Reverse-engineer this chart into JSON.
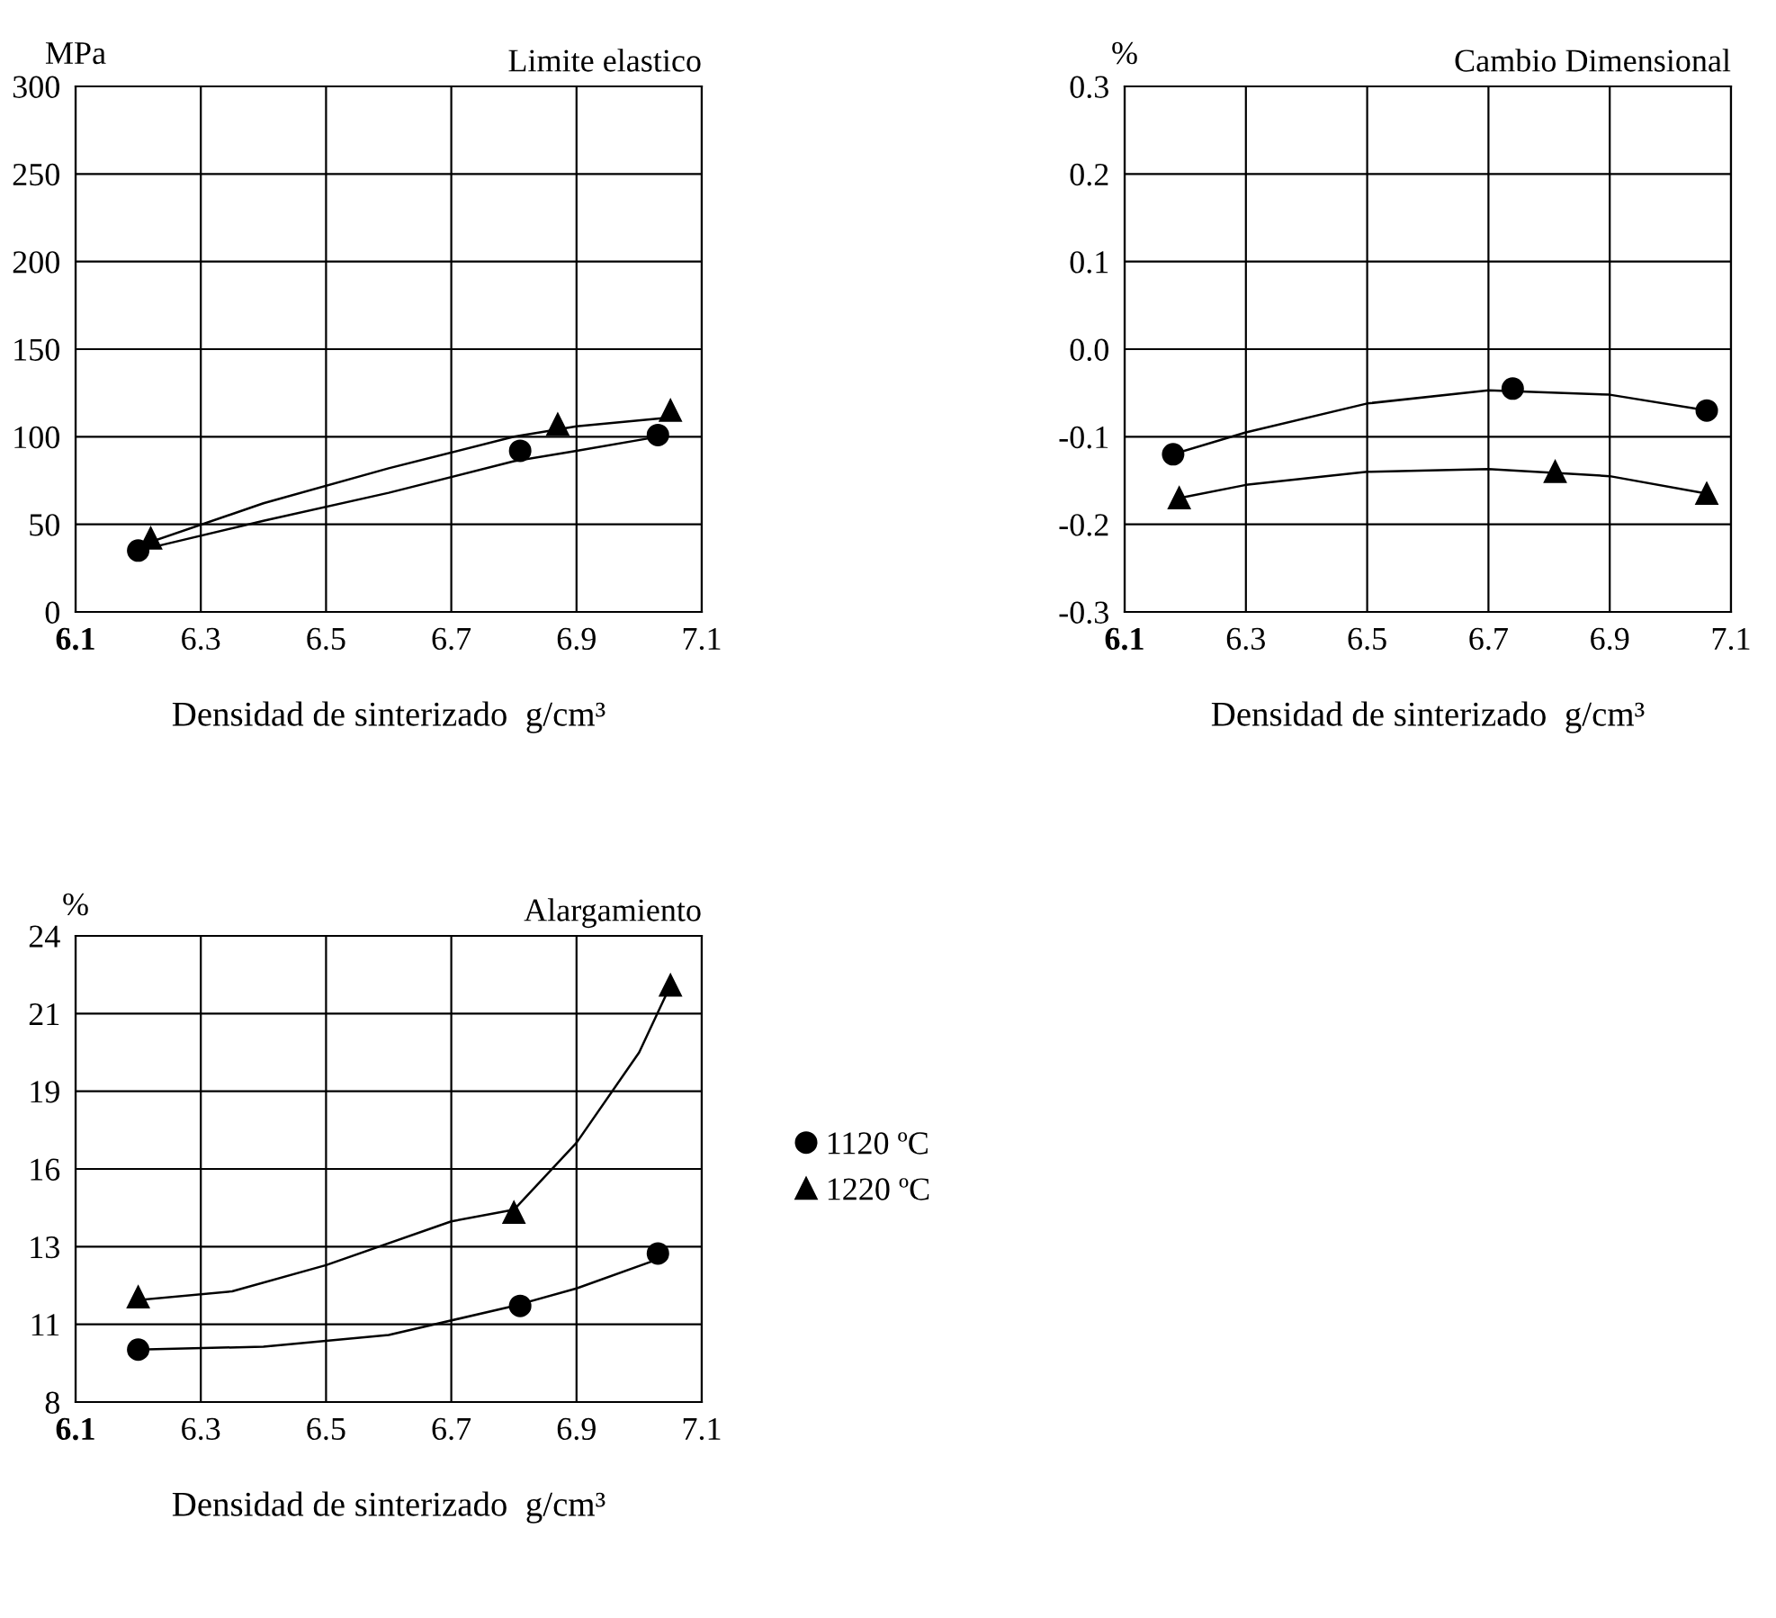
{
  "chart_data": [
    {
      "type": "scatter",
      "title": "Limite elastico",
      "ylabel": "MPa",
      "xlabel": "Densidad de sinterizado  g/cm³",
      "xlim": [
        6.1,
        7.1
      ],
      "xticks": [
        6.1,
        6.3,
        6.5,
        6.7,
        6.9,
        7.1
      ],
      "ylim": [
        0,
        300
      ],
      "yticks": [
        0,
        50,
        100,
        150,
        200,
        250,
        300
      ],
      "grid": true,
      "legend": false,
      "series": [
        {
          "color": "#000000",
          "marker": "circle",
          "x": [
            6.2,
            6.81,
            7.03
          ],
          "values": [
            35,
            92,
            101
          ]
        },
        {
          "color": "#000000",
          "marker": "triangle",
          "x": [
            6.22,
            6.87,
            7.05
          ],
          "values": [
            42,
            107,
            115
          ]
        },
        {
          "type": "line",
          "color": "#000000",
          "x": [
            6.2,
            6.4,
            6.6,
            6.8,
            6.9,
            7.03
          ],
          "values": [
            35,
            52,
            68,
            86,
            92,
            100
          ]
        },
        {
          "type": "line",
          "color": "#000000",
          "x": [
            6.22,
            6.4,
            6.6,
            6.8,
            6.9,
            7.05
          ],
          "values": [
            40,
            62,
            82,
            100,
            106,
            111
          ]
        }
      ]
    },
    {
      "type": "scatter",
      "title": "Cambio Dimensional",
      "ylabel": "%",
      "xlabel": "Densidad de sinterizado  g/cm³",
      "xlim": [
        6.1,
        7.1
      ],
      "xticks": [
        6.1,
        6.3,
        6.5,
        6.7,
        6.9,
        7.1
      ],
      "ylim": [
        -0.3,
        0.3
      ],
      "yticks": [
        {
          "value": -0.3,
          "label": "-0.3"
        },
        {
          "value": -0.2,
          "label": "-0.2"
        },
        {
          "value": -0.1,
          "label": "-0.1"
        },
        {
          "value": 0,
          "label": "0.0"
        },
        0.1,
        0.2,
        0.3
      ],
      "grid": true,
      "legend": false,
      "series": [
        {
          "color": "#000000",
          "marker": "circle",
          "x": [
            6.18,
            6.74,
            7.06
          ],
          "values": [
            -0.12,
            -0.045,
            -0.07
          ]
        },
        {
          "color": "#000000",
          "marker": "triangle",
          "x": [
            6.19,
            6.81,
            7.06
          ],
          "values": [
            -0.17,
            -0.14,
            -0.165
          ]
        },
        {
          "type": "line",
          "color": "#000000",
          "x": [
            6.18,
            6.3,
            6.5,
            6.7,
            6.9,
            7.06
          ],
          "values": [
            -0.12,
            -0.095,
            -0.062,
            -0.047,
            -0.052,
            -0.07
          ]
        },
        {
          "type": "line",
          "color": "#000000",
          "x": [
            6.19,
            6.3,
            6.5,
            6.7,
            6.9,
            7.06
          ],
          "values": [
            -0.17,
            -0.155,
            -0.14,
            -0.137,
            -0.145,
            -0.165
          ]
        }
      ]
    },
    {
      "type": "scatter",
      "title": "Alargamiento",
      "ylabel": "%",
      "xlabel": "Densidad de sinterizado  g/cm³",
      "xlim": [
        6.1,
        7.1
      ],
      "xticks": [
        6.1,
        6.3,
        6.5,
        6.7,
        6.9,
        7.1
      ],
      "ylim": [
        8,
        24
      ],
      "yticks": [
        8,
        {
          "value": 10.67,
          "label": "11"
        },
        {
          "value": 13.33,
          "label": "13"
        },
        16,
        {
          "value": 18.67,
          "label": "19"
        },
        {
          "value": 21.33,
          "label": "21"
        },
        24
      ],
      "grid": true,
      "legend": "right",
      "series": [
        {
          "name": "1120 ºC",
          "color": "#000000",
          "marker": "circle",
          "x": [
            6.2,
            6.81,
            7.03
          ],
          "values": [
            9.8,
            11.3,
            13.1
          ]
        },
        {
          "name": "1220 ºC",
          "color": "#000000",
          "marker": "triangle",
          "x": [
            6.2,
            6.8,
            7.05
          ],
          "values": [
            11.6,
            14.5,
            22.3
          ]
        },
        {
          "type": "line",
          "color": "#000000",
          "x": [
            6.2,
            6.4,
            6.6,
            6.8,
            6.9,
            7.03
          ],
          "values": [
            9.8,
            9.9,
            10.3,
            11.3,
            11.9,
            12.9
          ]
        },
        {
          "type": "line",
          "color": "#000000",
          "x": [
            6.2,
            6.35,
            6.5,
            6.7,
            6.8,
            6.9,
            7.0,
            7.05
          ],
          "values": [
            11.5,
            11.8,
            12.7,
            14.2,
            14.6,
            16.9,
            20.0,
            22.3
          ]
        }
      ]
    }
  ]
}
